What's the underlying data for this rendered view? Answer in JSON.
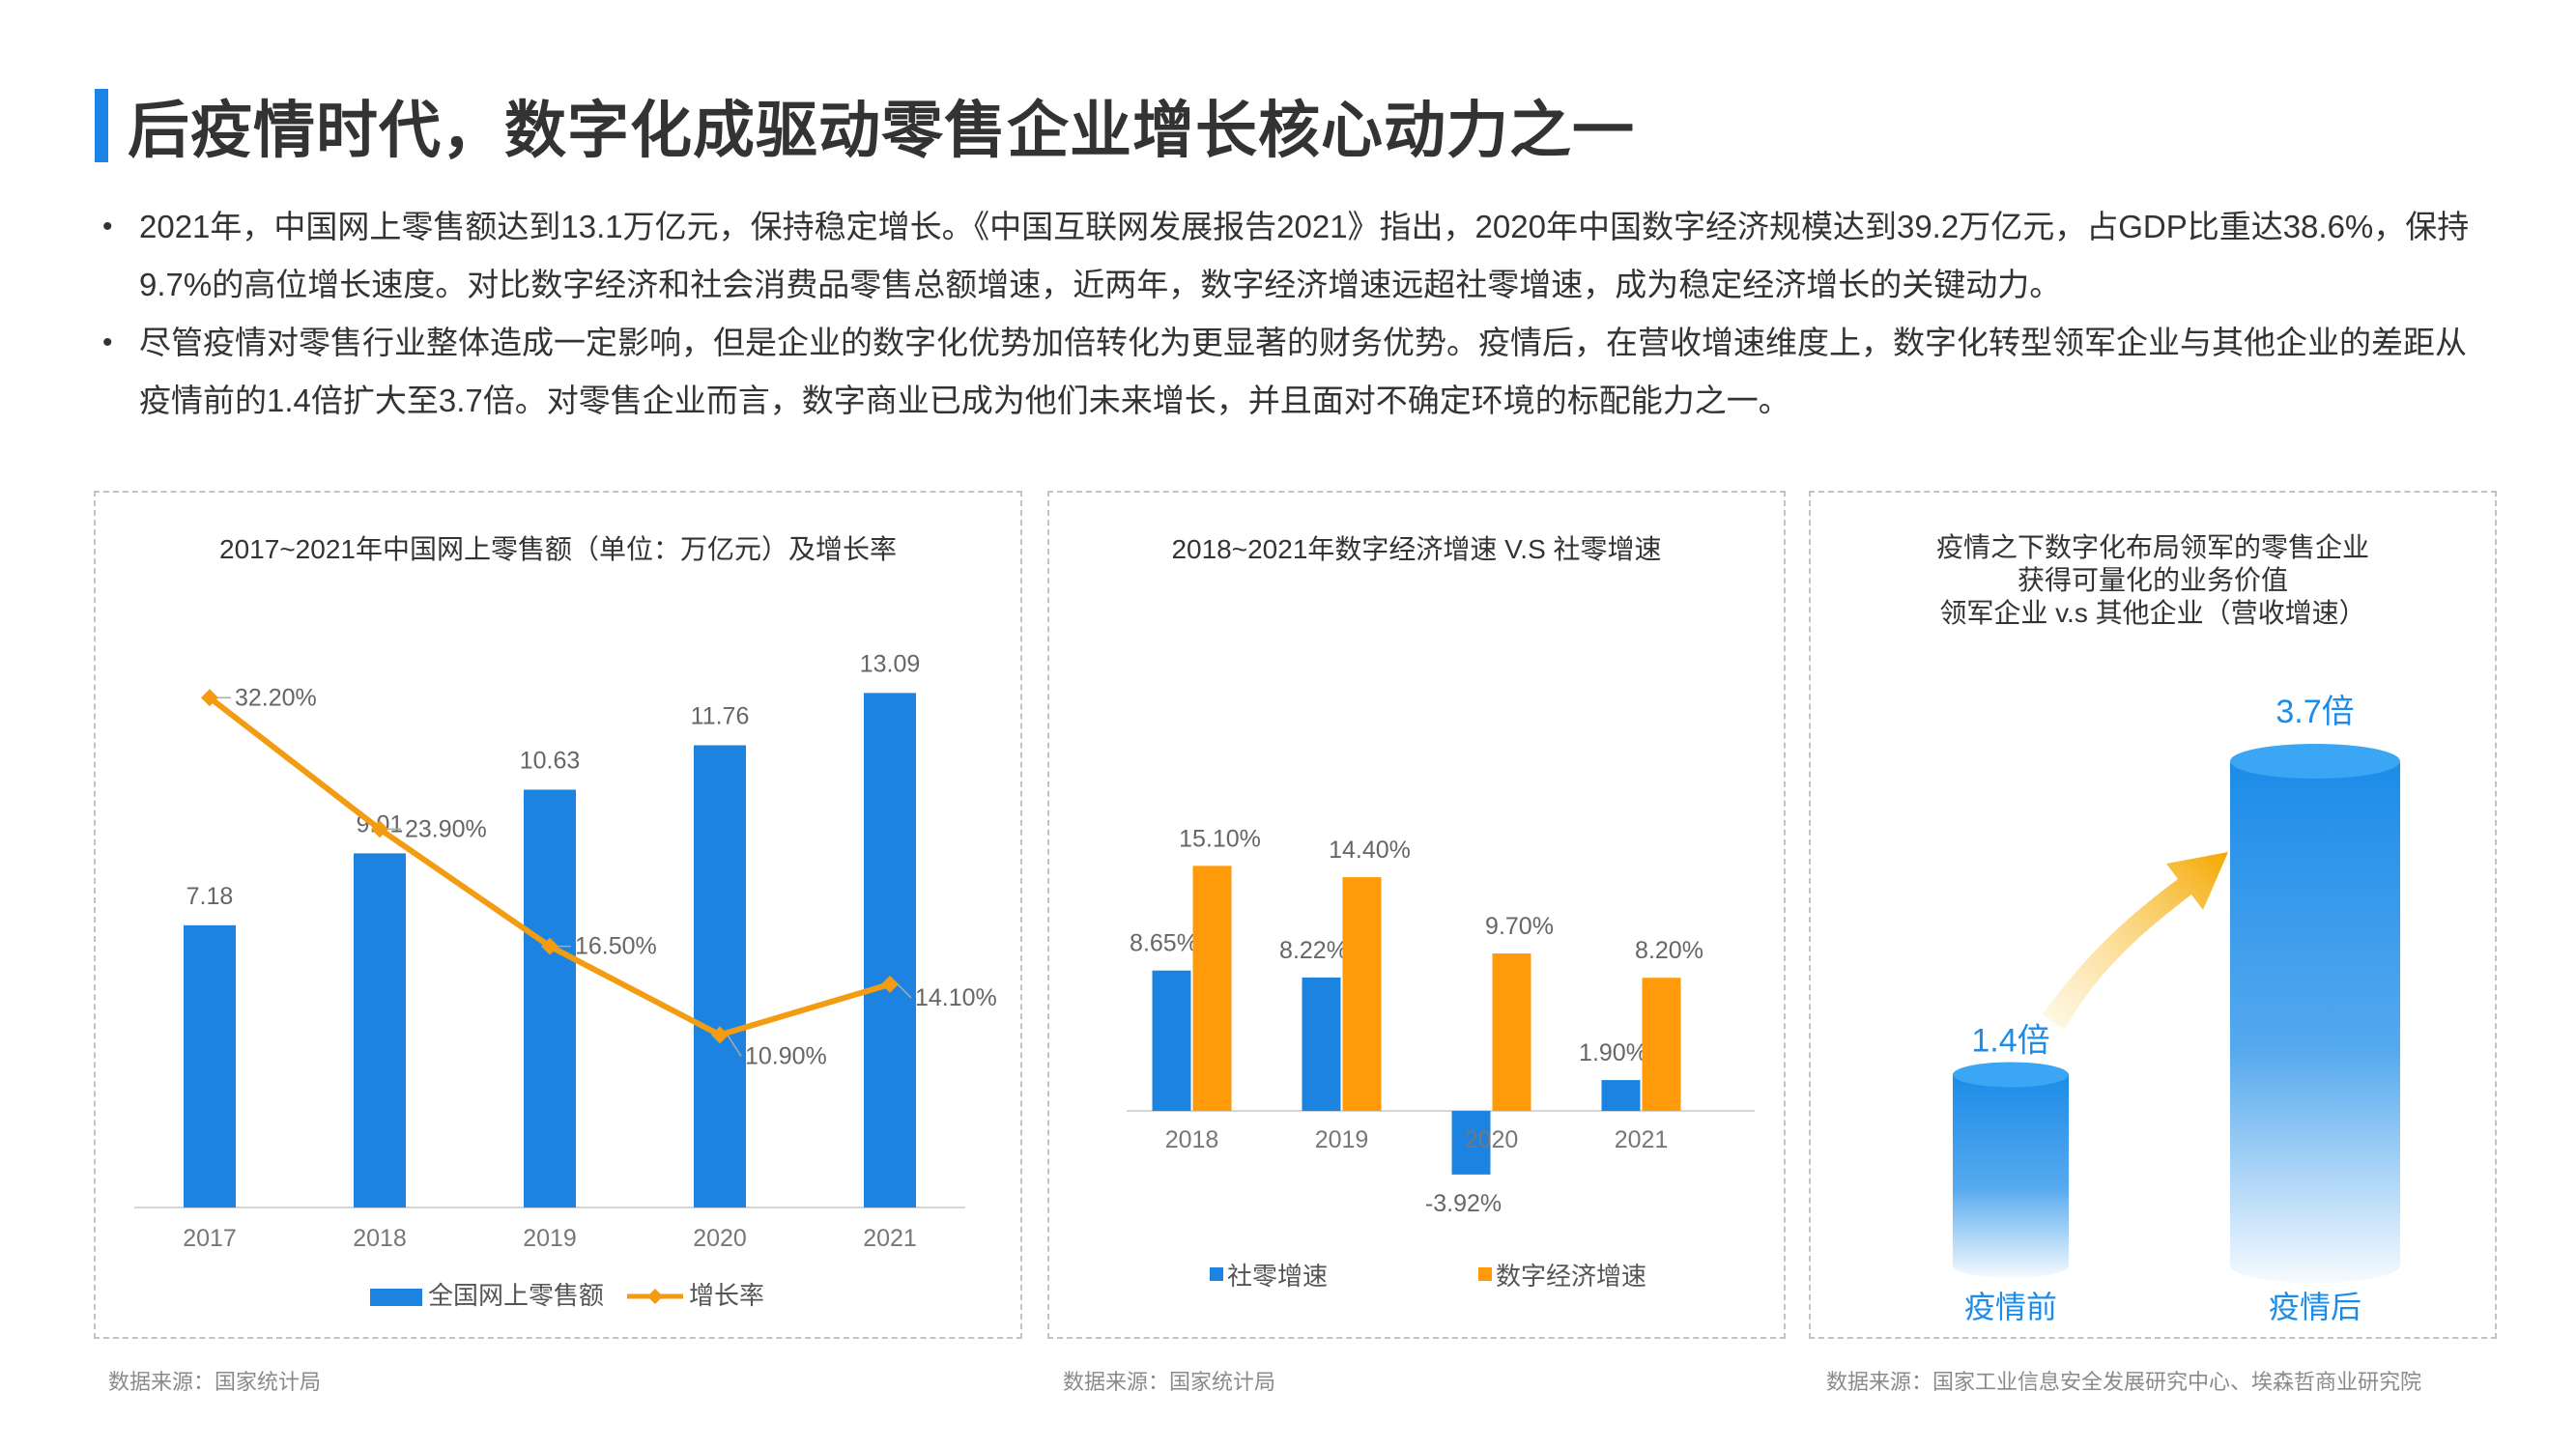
{
  "page": {
    "title": "后疫情时代，数字化成驱动零售企业增长核心动力之一",
    "bullets": [
      "2021年，中国网上零售额达到13.1万亿元，保持稳定增长。《中国互联网发展报告2021》指出，2020年中国数字经济规模达到39.2万亿元，占GDP比重达38.6%，保持9.7%的高位增长速度。对比数字经济和社会消费品零售总额增速，近两年，数字经济增速远超社零增速，成为稳定经济增长的关键动力。",
      "尽管疫情对零售行业整体造成一定影响，但是企业的数字化优势加倍转化为更显著的财务优势。疫情后，在营收增速维度上，数字化转型领军企业与其他企业的差距从疫情前的1.4倍扩大至3.7倍。对零售企业而言，数字商业已成为他们未来增长，并且面对不确定环境的标配能力之一。"
    ],
    "bullet_symbol": "•"
  },
  "chart_data": [
    {
      "type": "bar+line",
      "title": "2017~2021年中国网上零售额（单位：万亿元）及增长率",
      "categories": [
        "2017",
        "2018",
        "2019",
        "2020",
        "2021"
      ],
      "series": [
        {
          "name": "全国网上零售额",
          "type": "bar",
          "color": "#1c84e0",
          "values": [
            7.18,
            9.01,
            10.63,
            11.76,
            13.09
          ],
          "labels": [
            "7.18",
            "9.01",
            "10.63",
            "11.76",
            "13.09"
          ]
        },
        {
          "name": "增长率",
          "type": "line",
          "color": "#f39c12",
          "values": [
            32.2,
            23.9,
            16.5,
            10.9,
            14.1
          ],
          "labels": [
            "32.20%",
            "23.90%",
            "16.50%",
            "10.90%",
            "14.10%"
          ]
        }
      ],
      "bar_ylim": [
        0,
        14.5
      ],
      "line_ylim": [
        0,
        36
      ],
      "source": "数据来源：国家统计局"
    },
    {
      "type": "bar",
      "title": "2018~2021年数字经济增速 V.S 社零增速",
      "categories": [
        "2018",
        "2019",
        "2020",
        "2021"
      ],
      "series": [
        {
          "name": "社零增速",
          "color": "#1c84e0",
          "values": [
            8.65,
            8.22,
            -3.92,
            1.9
          ],
          "labels": [
            "8.65%",
            "8.22%",
            "-3.92%",
            "1.90%"
          ]
        },
        {
          "name": "数字经济增速",
          "color": "#ff9a0a",
          "values": [
            15.1,
            14.4,
            9.7,
            8.2
          ],
          "labels": [
            "15.10%",
            "14.40%",
            "9.70%",
            "8.20%"
          ]
        }
      ],
      "ylim": [
        -5,
        17
      ],
      "source": "数据来源：国家统计局"
    },
    {
      "type": "bar",
      "title_lines": [
        "疫情之下数字化布局领军的零售企业",
        "获得可量化的业务价值",
        "领军企业 v.s 其他企业（营收增速）"
      ],
      "categories": [
        "疫情前",
        "疫情后"
      ],
      "values": [
        1.4,
        3.7
      ],
      "labels": [
        "1.4倍",
        "3.7倍"
      ],
      "color": "#1c8ce8",
      "source": "数据来源：国家工业信息安全发展研究中心、埃森哲商业研究院"
    }
  ]
}
